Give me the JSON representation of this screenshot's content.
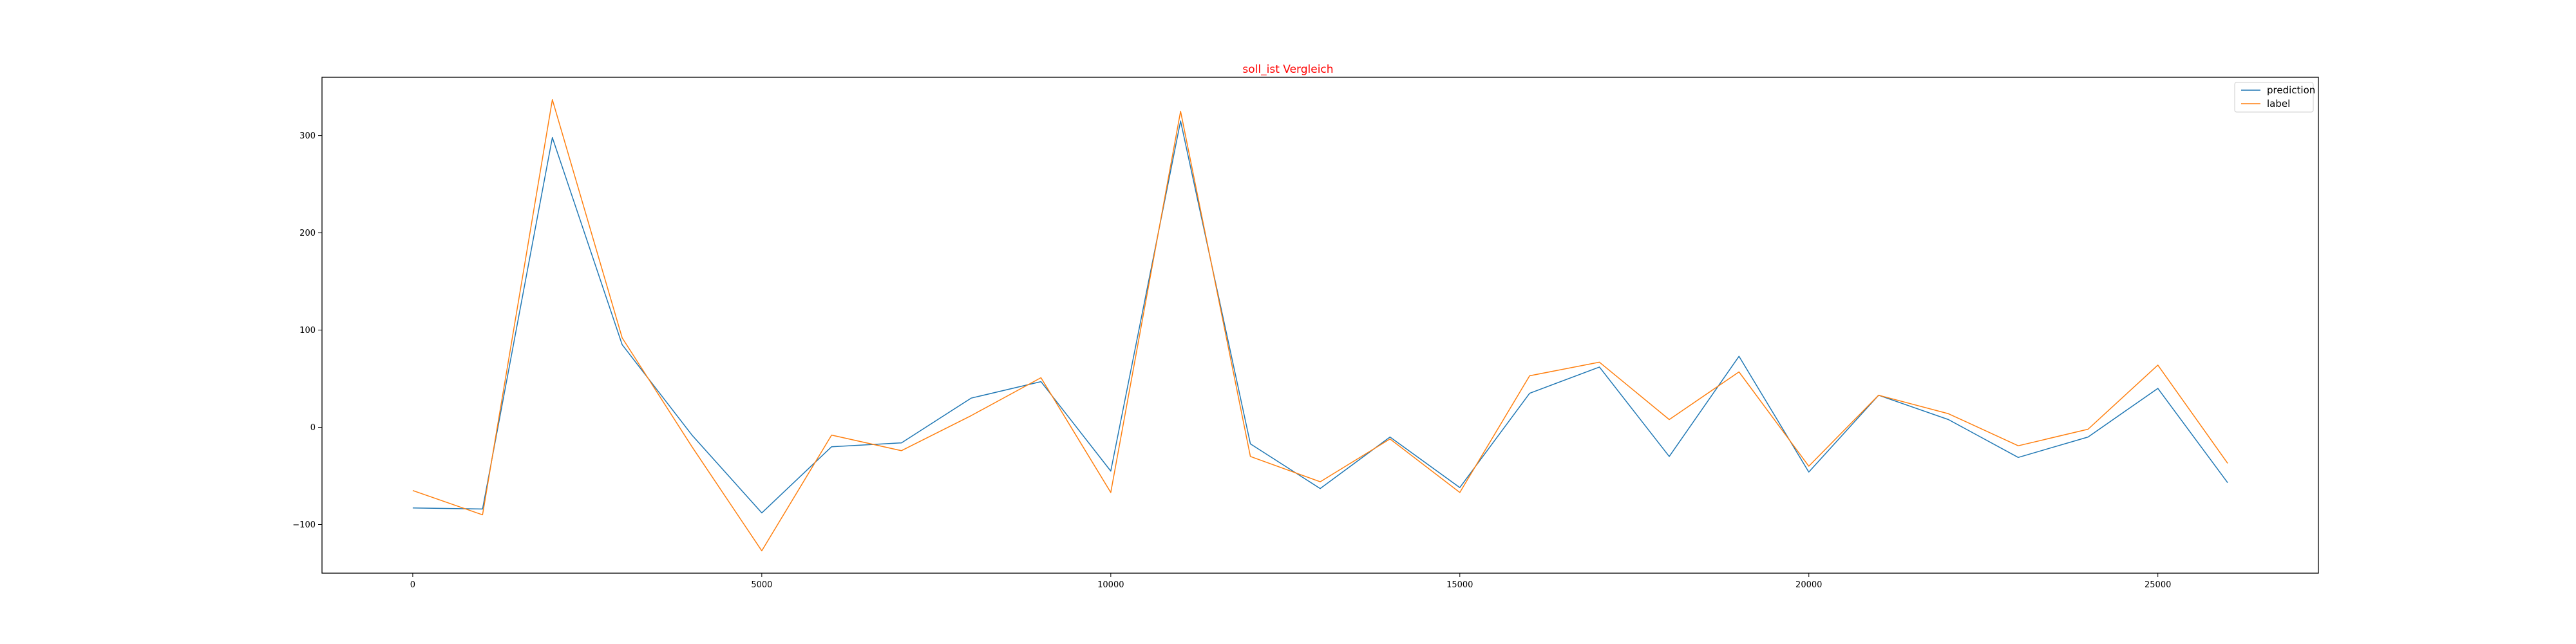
{
  "chart_data": {
    "type": "line",
    "title": "soll_ist Vergleich",
    "title_color": "#ff0000",
    "xlabel": "",
    "ylabel": "",
    "x": [
      0,
      1000,
      2000,
      3000,
      4000,
      5000,
      6000,
      7000,
      8000,
      9000,
      10000,
      11000,
      12000,
      13000,
      14000,
      15000,
      16000,
      17000,
      18000,
      19000,
      20000,
      21000,
      22000,
      23000,
      24000,
      25000,
      26000
    ],
    "series": [
      {
        "name": "prediction",
        "color": "#1f77b4",
        "values": [
          -83,
          -84,
          298,
          85,
          -8,
          -88,
          -20,
          -16,
          30,
          47,
          -45,
          315,
          -17,
          -63,
          -10,
          -62,
          35,
          62,
          -30,
          73,
          -46,
          33,
          8,
          -31,
          -10,
          40,
          -57
        ]
      },
      {
        "name": "label",
        "color": "#ff7f0e",
        "values": [
          -65,
          -90,
          337,
          92,
          -20,
          -127,
          -8,
          -24,
          12,
          51,
          -67,
          325,
          -30,
          -56,
          -12,
          -67,
          53,
          67,
          8,
          57,
          -40,
          33,
          14,
          -19,
          -2,
          64,
          -37
        ]
      }
    ],
    "xlim": [
      -1300,
      27300
    ],
    "ylim": [
      -150,
      360
    ],
    "xticks": [
      0,
      5000,
      10000,
      15000,
      20000,
      25000
    ],
    "yticks": [
      -100,
      0,
      100,
      200,
      300
    ],
    "grid": false,
    "legend_position": "top-right"
  }
}
